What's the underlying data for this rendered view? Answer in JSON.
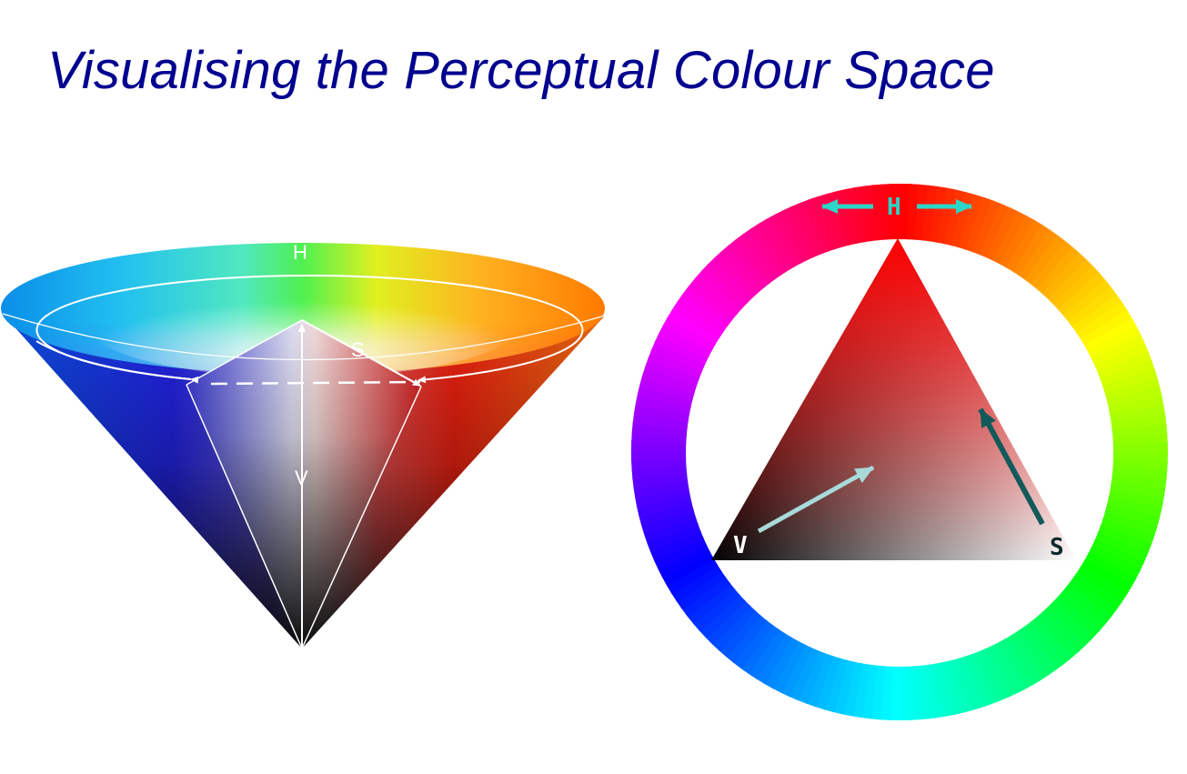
{
  "title": "Visualising the Perceptual Colour Space",
  "cone": {
    "labels": {
      "hue": "H",
      "saturation": "S",
      "value": "V"
    }
  },
  "wheel": {
    "labels": {
      "hue": "H",
      "value": "V",
      "saturation": "S"
    },
    "colors": {
      "hue_arrow": "#2bd6c8",
      "value_arrow": "#a8dada",
      "saturation_arrow": "#125a5a",
      "triangle_hue": "#ff0000"
    }
  }
}
